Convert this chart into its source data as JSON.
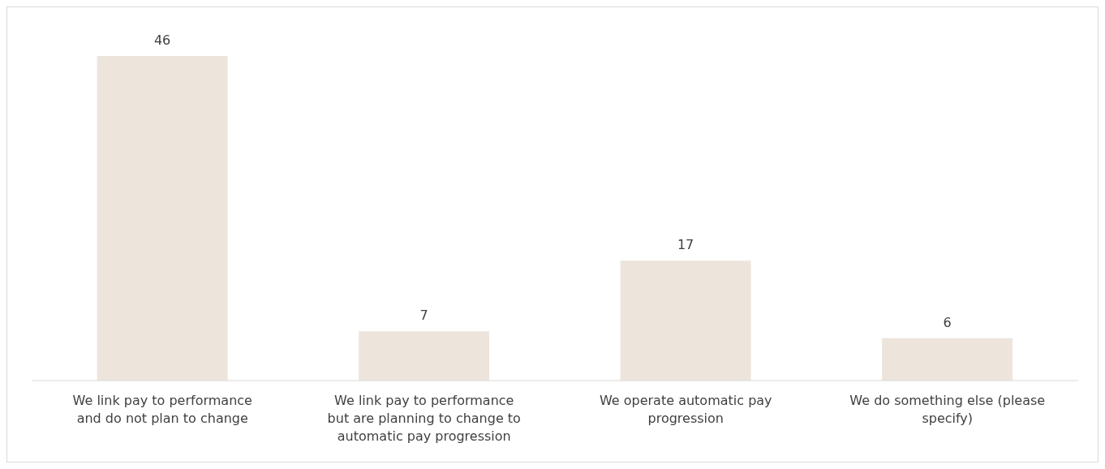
{
  "chart_data": {
    "type": "bar",
    "categories": [
      "We link pay to performance and do not plan to change",
      "We link pay to performance but are planning to change to automatic pay progression",
      "We operate automatic pay progression",
      "We do something else (please specify)"
    ],
    "values": [
      46,
      7,
      17,
      6
    ],
    "color": "#ede5dc",
    "data_labels": true
  }
}
